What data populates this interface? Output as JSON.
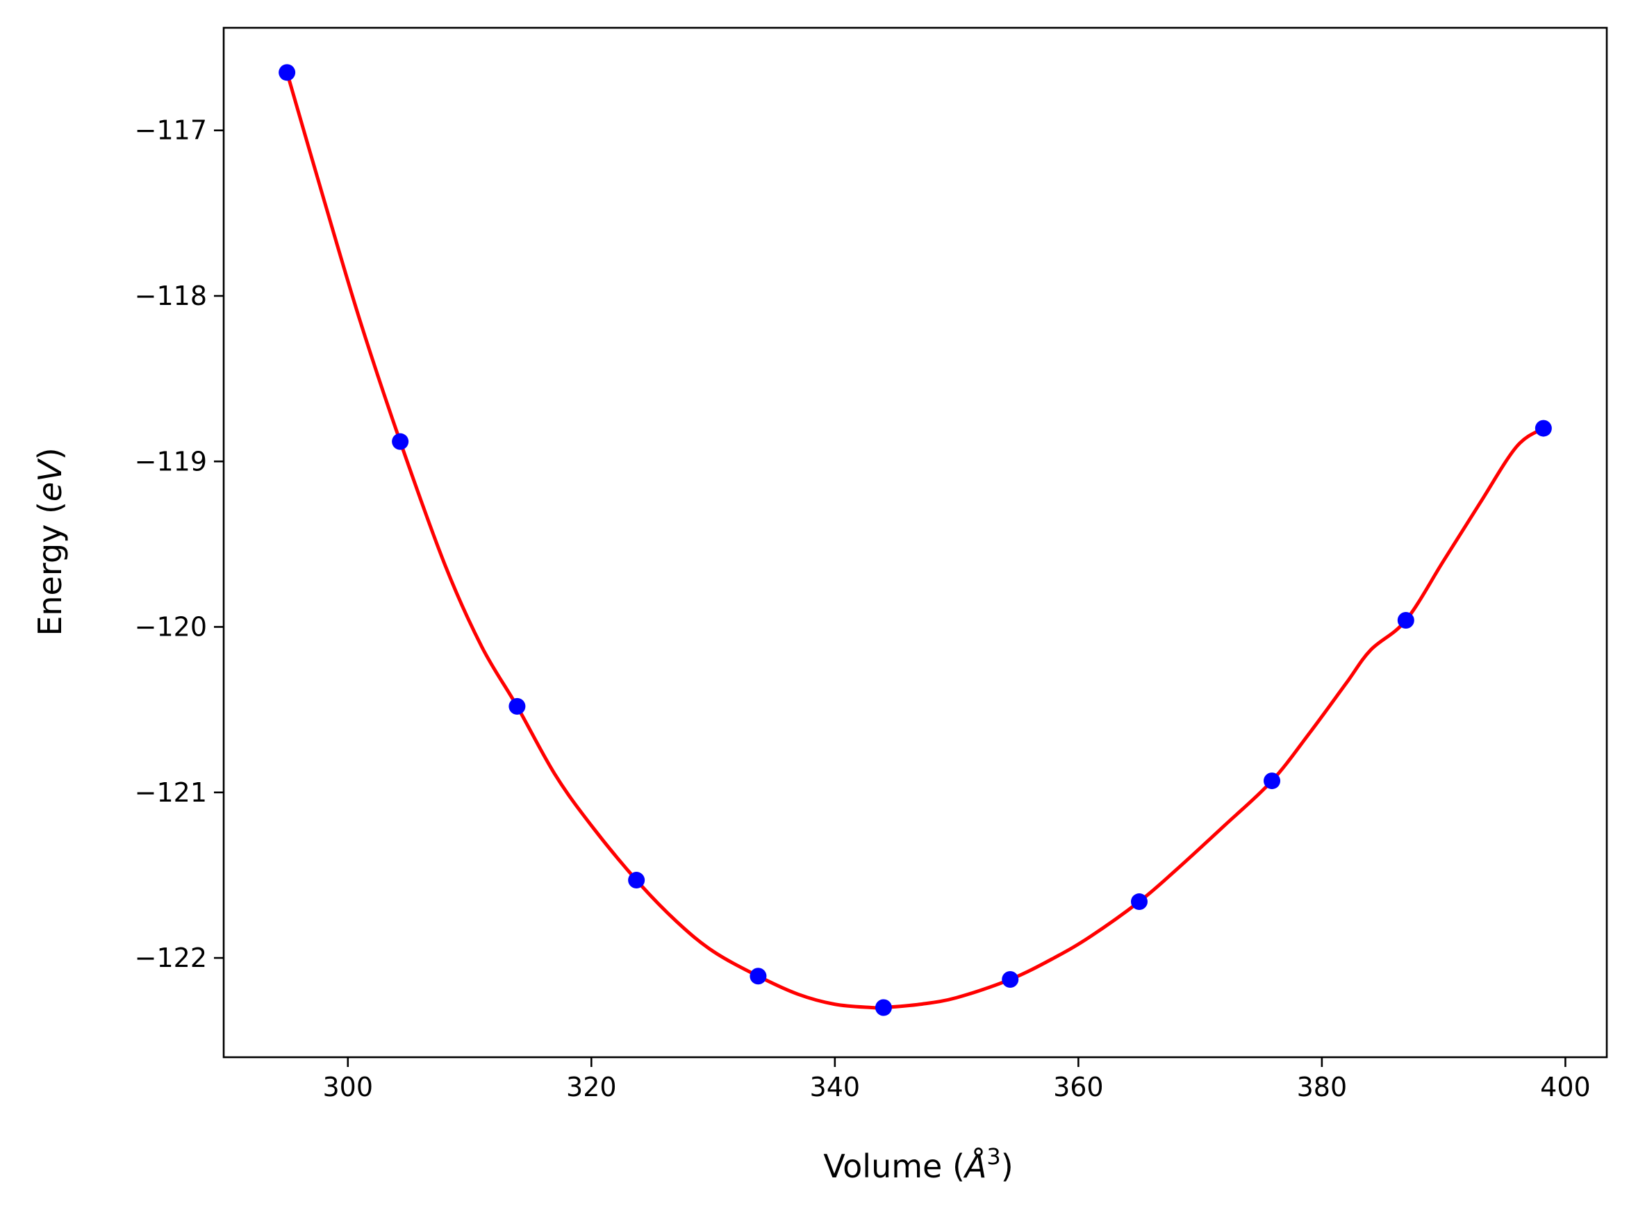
{
  "chart_data": {
    "type": "scatter",
    "title": "",
    "xlabel": "Volume",
    "xlabel_unit": "Å",
    "xlabel_unit_exponent": "3",
    "ylabel": "Energy",
    "ylabel_unit": "eV",
    "xlim": [
      289.8,
      403.4
    ],
    "ylim": [
      -122.6,
      -116.38
    ],
    "x_ticks": [
      300,
      320,
      340,
      360,
      380,
      400
    ],
    "x_tick_labels": [
      "300",
      "320",
      "340",
      "360",
      "380",
      "400"
    ],
    "y_ticks": [
      -117,
      -118,
      -119,
      -120,
      -121,
      -122
    ],
    "y_tick_labels": [
      "−117",
      "−118",
      "−119",
      "−120",
      "−121",
      "−122"
    ],
    "grid": false,
    "legend": "none",
    "series": [
      {
        "type": "scatter",
        "color": "#0000ff",
        "x": [
          295.0,
          304.3,
          313.9,
          323.7,
          333.7,
          344.0,
          354.4,
          365.0,
          375.9,
          386.9,
          398.2
        ],
        "y": [
          -116.65,
          -118.88,
          -120.48,
          -121.53,
          -122.11,
          -122.3,
          -122.13,
          -121.66,
          -120.93,
          -119.96,
          -118.8
        ]
      },
      {
        "type": "line",
        "color": "#ff0000",
        "x": [
          295.0,
          298.0,
          301.0,
          304.3,
          308.0,
          311.0,
          313.9,
          317.0,
          320.0,
          323.7,
          327.0,
          330.0,
          333.7,
          337.0,
          340.0,
          343.0,
          344.0,
          347.0,
          350.0,
          354.4,
          358.0,
          361.0,
          365.0,
          368.0,
          372.0,
          375.9,
          379.0,
          382.0,
          384.0,
          386.9,
          390.0,
          393.0,
          396.0,
          398.2
        ],
        "y": [
          -116.65,
          -117.41,
          -118.15,
          -118.88,
          -119.63,
          -120.12,
          -120.48,
          -120.89,
          -121.2,
          -121.53,
          -121.78,
          -121.96,
          -122.11,
          -122.22,
          -122.28,
          -122.3,
          -122.3,
          -122.28,
          -122.24,
          -122.13,
          -122.0,
          -121.87,
          -121.66,
          -121.47,
          -121.2,
          -120.93,
          -120.64,
          -120.34,
          -120.14,
          -119.96,
          -119.6,
          -119.25,
          -118.91,
          -118.8
        ]
      }
    ]
  }
}
